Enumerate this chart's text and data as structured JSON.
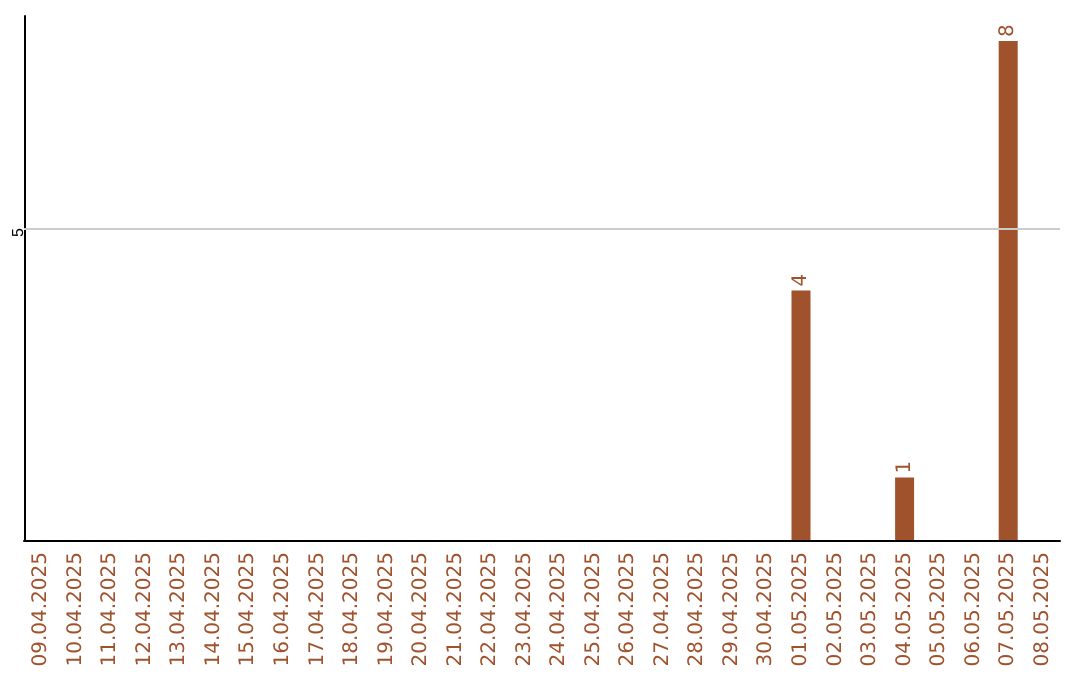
{
  "chart_data": {
    "type": "bar",
    "categories": [
      "09.04.2025",
      "10.04.2025",
      "11.04.2025",
      "12.04.2025",
      "13.04.2025",
      "14.04.2025",
      "15.04.2025",
      "16.04.2025",
      "17.04.2025",
      "18.04.2025",
      "19.04.2025",
      "20.04.2025",
      "21.04.2025",
      "22.04.2025",
      "23.04.2025",
      "24.04.2025",
      "25.04.2025",
      "26.04.2025",
      "27.04.2025",
      "28.04.2025",
      "29.04.2025",
      "30.04.2025",
      "01.05.2025",
      "02.05.2025",
      "03.05.2025",
      "04.05.2025",
      "05.05.2025",
      "06.05.2025",
      "07.05.2025",
      "08.05.2025"
    ],
    "values": [
      null,
      null,
      null,
      null,
      null,
      null,
      null,
      null,
      null,
      null,
      null,
      null,
      null,
      null,
      null,
      null,
      null,
      null,
      null,
      null,
      null,
      null,
      4,
      null,
      null,
      1,
      null,
      null,
      8,
      null
    ],
    "data_labels": true,
    "color": "#a0522d",
    "ylim": [
      0,
      8.4
    ],
    "ref_lines": [
      {
        "axis": "y",
        "value": 5,
        "label": "5",
        "color": "#cccccc"
      }
    ]
  }
}
